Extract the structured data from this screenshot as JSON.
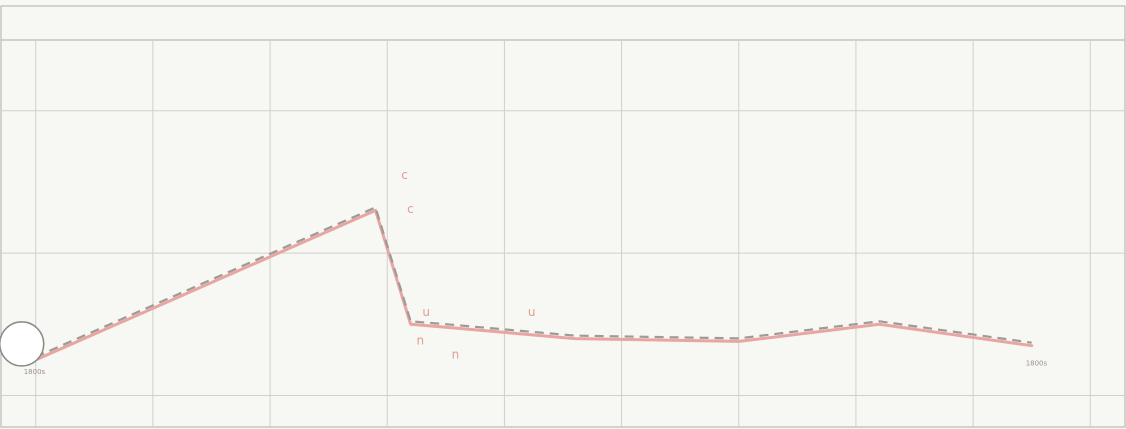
{
  "chart_data": {
    "type": "line",
    "title": "",
    "xlabel": "",
    "ylabel": "",
    "x": [
      0,
      2.9,
      3.2,
      3.5,
      4.6,
      6.0,
      7.2,
      8.5
    ],
    "series": [
      {
        "values": [
          0.25,
          1.3,
          0.5,
          0.48,
          0.4,
          0.38,
          0.5,
          0.35
        ]
      }
    ],
    "xlim": [
      -0.1,
      9.1
    ],
    "ylim": [
      -0.2,
      2.3
    ],
    "grid": true,
    "legend": "none",
    "colors": {
      "line": "#e8a5a1",
      "dash": "#9e9a97",
      "grid": "#cfcfcb",
      "glyph": "#e59a96"
    },
    "start_label": "1800s",
    "end_label": "1800s",
    "point_glyphs": [
      "c",
      "c",
      "u",
      "u",
      "n",
      "n"
    ]
  }
}
